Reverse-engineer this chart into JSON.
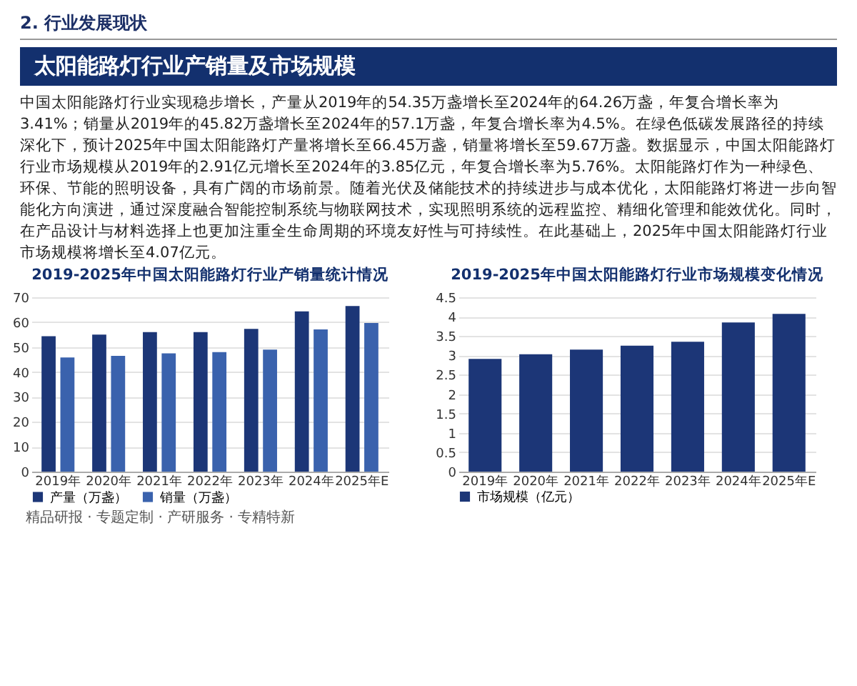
{
  "chart_data": [
    {
      "type": "other",
      "subtitle": "2. 行业发展现状",
      "title": "太阳能路灯行业产销量及市场规模",
      "annotations": [
        "中国太阳能路灯行业实现稳步增长，产量从2019年的54.35万盏增长至2024年的64.26万盏，年复合增长率为3.41%；销量从2019年的45.82万盏增长至2024年的57.1万盏，年复合增长率为4.5%。在绿色低碳发展路径的持续深化下，预计2025年中国太阳能路灯产量将增长至66.45万盏，销量将增长至59.67万盏。数据显示，中国太阳能路灯行业市场规模从2019年的2.91亿元增长至2024年的3.85亿元，年复合增长率为5.76%。太阳能路灯作为一种绿色、环保、节能的照明设备，具有广阔的市场前景。随着光伏及储能技术的持续进步与成本优化，太阳能路灯将进一步向智能化方向演进，通过深度融合智能控制系统与物联网技术，实现照明系统的远程监控、精细化管理和能效优化。同时，在产品设计与材料选择上也更加注重全生命周期的环境友好性与可持续性。在此基础上，2025年中国太阳能路灯行业市场规模将增长至4.07亿元。"
      ]
    },
    {
      "type": "bar",
      "title": "2019-2025年中国太阳能路灯行业产销量统计情况",
      "categories": [
        "2019年",
        "2020年",
        "2021年",
        "2022年",
        "2023年",
        "2024年",
        "2025年E"
      ],
      "series": [
        {
          "name": "产量（万盏）",
          "color": "#1c3677",
          "values": [
            54.4,
            55,
            56,
            56,
            57.3,
            64.3,
            66.5
          ]
        },
        {
          "name": "销量（万盏）",
          "color": "#3a62ad",
          "values": [
            45.8,
            46.5,
            47.5,
            48,
            49,
            57.1,
            59.7
          ]
        }
      ],
      "ylim": [
        0,
        70
      ],
      "yticks": [
        0,
        10,
        20,
        30,
        40,
        50,
        60,
        70
      ],
      "grid": "y",
      "legend": "bottom",
      "annotations": [
        "精品研报 · 专题定制 · 产研服务 · 专精特新"
      ]
    },
    {
      "type": "bar",
      "title": "2019-2025年中国太阳能路灯行业市场规模变化情况",
      "categories": [
        "2019年",
        "2020年",
        "2021年",
        "2022年",
        "2023年",
        "2024年",
        "2025年E"
      ],
      "series": [
        {
          "name": "市场规模（亿元）",
          "color": "#1c3677",
          "values": [
            2.91,
            3.03,
            3.15,
            3.25,
            3.35,
            3.85,
            4.07
          ]
        }
      ],
      "ylim": [
        0,
        4.5
      ],
      "yticks": [
        0,
        0.5,
        1,
        1.5,
        2,
        2.5,
        3,
        3.5,
        4,
        4.5
      ],
      "grid": "y",
      "legend": "bottom"
    }
  ]
}
